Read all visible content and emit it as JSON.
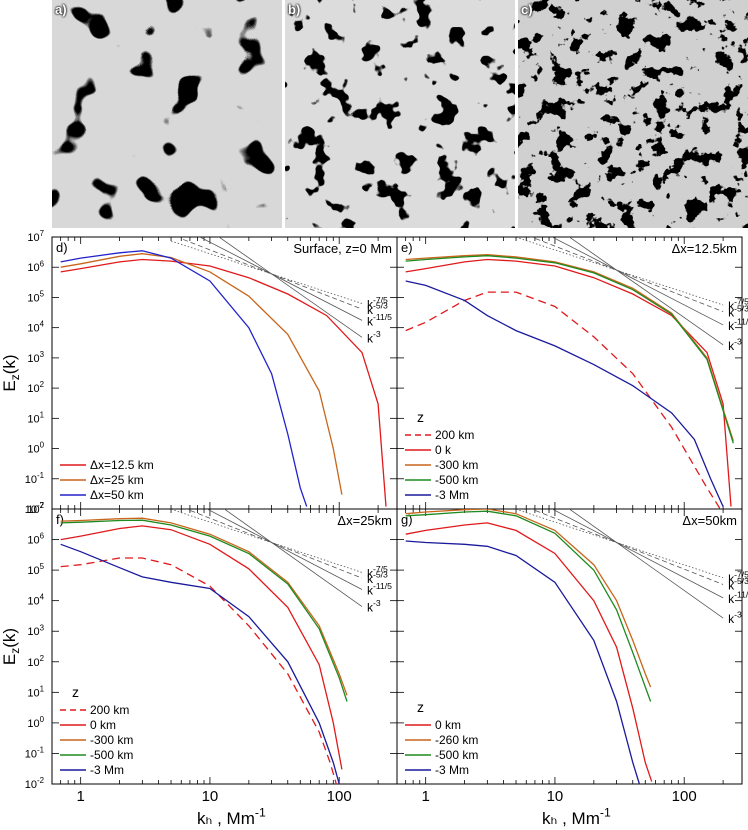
{
  "image_panels": [
    {
      "label": "a)"
    },
    {
      "label": "b)"
    },
    {
      "label": "c)"
    }
  ],
  "colors": {
    "red": "#e0191b",
    "orange": "#c8651b",
    "blue": "#2222cc",
    "darkblue": "#1a1a9c",
    "green": "#1f8a1f",
    "olive": "#9a7d1a"
  },
  "chart_data": [
    {
      "type": "line",
      "panel_label": "d)",
      "annotation": "Surface, z=0 Mm",
      "xlabel": "k_h , Mm^-1",
      "ylabel": "E_z(k)",
      "xscale": "log",
      "yscale": "log",
      "xlim": [
        0.6,
        280
      ],
      "ylim": [
        0.01,
        10000000
      ],
      "x_ticks": [
        "1",
        "10",
        "100"
      ],
      "y_ticks": [
        "10^-2",
        "10^-1",
        "10^0",
        "10^1",
        "10^2",
        "10^3",
        "10^4",
        "10^5",
        "10^6",
        "10^7"
      ],
      "legend_title": "",
      "legend_position": "bottom-left",
      "series": [
        {
          "name": "Δx=12.5 km",
          "color": "#e0191b",
          "dash": "solid",
          "x": [
            0.7,
            1,
            2,
            3,
            5,
            10,
            20,
            40,
            80,
            150,
            200,
            230
          ],
          "y": [
            700000,
            900000,
            1500000,
            1800000,
            1600000,
            1100000,
            450000,
            130000,
            25000,
            1500,
            30,
            0.012
          ]
        },
        {
          "name": "Δx=25 km",
          "color": "#c8651b",
          "dash": "solid",
          "x": [
            0.7,
            1,
            2,
            3,
            5,
            10,
            20,
            40,
            70,
            90,
            105
          ],
          "y": [
            1000000,
            1300000,
            2300000,
            2800000,
            2100000,
            700000,
            110000,
            6000,
            80,
            1,
            0.03
          ]
        },
        {
          "name": "Δx=50 km",
          "color": "#2222cc",
          "dash": "solid",
          "x": [
            0.7,
            1,
            2,
            3,
            5,
            10,
            20,
            30,
            40,
            50,
            56
          ],
          "y": [
            1500000,
            2000000,
            3000000,
            3500000,
            2000000,
            350000,
            10000,
            300,
            3,
            0.05,
            0.012
          ]
        }
      ],
      "power_laws": [
        {
          "label": "k^-7/5",
          "exp": "-7/5",
          "style": "dotted"
        },
        {
          "label": "k^-5/3",
          "exp": "-5/3",
          "style": "dashed"
        },
        {
          "label": "k^-11/5",
          "exp": "-11/5",
          "style": "solid"
        },
        {
          "label": "k^-3",
          "exp": "-3",
          "style": "solid"
        }
      ]
    },
    {
      "type": "line",
      "panel_label": "e)",
      "annotation": "Δx=12.5km",
      "xlabel": "k_h , Mm^-1",
      "ylabel": "E_z(k)",
      "xscale": "log",
      "yscale": "log",
      "xlim": [
        0.6,
        280
      ],
      "ylim": [
        0.01,
        10000000
      ],
      "x_ticks": [
        "1",
        "10",
        "100"
      ],
      "y_ticks": [
        "10^-2",
        "10^-1",
        "10^0",
        "10^1",
        "10^2",
        "10^3",
        "10^4",
        "10^5",
        "10^6",
        "10^7"
      ],
      "legend_title": "z",
      "legend_position": "bottom-left",
      "series": [
        {
          "name": "200 km",
          "color": "#e0191b",
          "dash": "dashed",
          "x": [
            0.7,
            1,
            2,
            3,
            5,
            10,
            20,
            40,
            80,
            150,
            190
          ],
          "y": [
            8000,
            15000,
            80000,
            150000,
            150000,
            50000,
            5000,
            300,
            5,
            0.05,
            0.01
          ]
        },
        {
          "name": "0 k",
          "color": "#e0191b",
          "dash": "solid",
          "x": [
            0.7,
            1,
            2,
            3,
            5,
            10,
            20,
            40,
            80,
            150,
            200,
            230
          ],
          "y": [
            700000,
            900000,
            1500000,
            1800000,
            1600000,
            1100000,
            450000,
            130000,
            25000,
            1500,
            30,
            0.012
          ]
        },
        {
          "name": "-300 km",
          "color": "#c8651b",
          "dash": "solid",
          "x": [
            0.7,
            1,
            2,
            3,
            5,
            10,
            20,
            40,
            80,
            150,
            200,
            240
          ],
          "y": [
            1800000,
            2000000,
            2400000,
            2600000,
            2200000,
            1500000,
            700000,
            200000,
            30000,
            1000,
            20,
            1.8
          ]
        },
        {
          "name": "-500 km",
          "color": "#1f8a1f",
          "dash": "solid",
          "x": [
            0.7,
            1,
            2,
            3,
            5,
            10,
            20,
            40,
            80,
            150,
            200,
            240
          ],
          "y": [
            1600000,
            1800000,
            2200000,
            2400000,
            2000000,
            1400000,
            650000,
            180000,
            28000,
            900,
            18,
            1.5
          ]
        },
        {
          "name": "-3 Mm",
          "color": "#1a1a9c",
          "dash": "solid",
          "x": [
            0.7,
            1,
            2,
            3,
            5,
            10,
            20,
            40,
            80,
            120,
            160,
            200
          ],
          "y": [
            350000,
            250000,
            80000,
            25000,
            8000,
            2500,
            600,
            120,
            15,
            2,
            0.1,
            0.012
          ]
        }
      ],
      "power_laws": [
        {
          "label": "k^-7/5",
          "exp": "-7/5",
          "style": "dotted"
        },
        {
          "label": "k^-5/3",
          "exp": "-5/3",
          "style": "dashed"
        },
        {
          "label": "k^-11/5",
          "exp": "-11/5",
          "style": "solid"
        },
        {
          "label": "k^-3",
          "exp": "-3",
          "style": "solid"
        }
      ]
    },
    {
      "type": "line",
      "panel_label": "f)",
      "annotation": "Δx=25km",
      "xlabel": "k_h , Mm^-1",
      "ylabel": "E_z(k)",
      "xscale": "log",
      "yscale": "log",
      "xlim": [
        0.6,
        280
      ],
      "ylim": [
        0.01,
        10000000
      ],
      "x_ticks": [
        "1",
        "10",
        "100"
      ],
      "y_ticks": [
        "10^-2",
        "10^-1",
        "10^0",
        "10^1",
        "10^2",
        "10^3",
        "10^4",
        "10^5",
        "10^6",
        "10^7"
      ],
      "legend_title": "z",
      "legend_position": "bottom-left",
      "series": [
        {
          "name": "200 km",
          "color": "#e0191b",
          "dash": "dashed",
          "x": [
            0.7,
            1,
            2,
            3,
            5,
            10,
            20,
            40,
            70,
            85,
            95
          ],
          "y": [
            130000,
            150000,
            250000,
            250000,
            150000,
            30000,
            1500,
            40,
            0.5,
            0.05,
            0.01
          ]
        },
        {
          "name": "0 km",
          "color": "#e0191b",
          "dash": "solid",
          "x": [
            0.7,
            1,
            2,
            3,
            5,
            10,
            20,
            40,
            70,
            90,
            105
          ],
          "y": [
            1000000,
            1300000,
            2300000,
            2800000,
            2100000,
            700000,
            110000,
            6000,
            80,
            1,
            0.03
          ]
        },
        {
          "name": "-300 km",
          "color": "#c8651b",
          "dash": "solid",
          "x": [
            0.7,
            1,
            2,
            3,
            5,
            10,
            20,
            40,
            70,
            100,
            115
          ],
          "y": [
            4000000,
            4200000,
            4800000,
            5000000,
            3500000,
            1500000,
            400000,
            40000,
            1500,
            40,
            8
          ]
        },
        {
          "name": "-500 km",
          "color": "#1f8a1f",
          "dash": "solid",
          "x": [
            0.7,
            1,
            2,
            3,
            5,
            10,
            20,
            40,
            70,
            100,
            115
          ],
          "y": [
            3500000,
            3700000,
            4200000,
            4300000,
            3000000,
            1300000,
            350000,
            35000,
            1200,
            30,
            5
          ]
        },
        {
          "name": "-3 Mm",
          "color": "#1a1a9c",
          "dash": "solid",
          "x": [
            0.7,
            1,
            2,
            3,
            5,
            10,
            20,
            40,
            70,
            90,
            100
          ],
          "y": [
            700000,
            400000,
            120000,
            60000,
            40000,
            25000,
            3000,
            100,
            1,
            0.05,
            0.01
          ]
        }
      ],
      "power_laws": [
        {
          "label": "k^-7/5",
          "exp": "-7/5",
          "style": "dotted"
        },
        {
          "label": "k^-5/3",
          "exp": "-5/3",
          "style": "dashed"
        },
        {
          "label": "k^-11/5",
          "exp": "-11/5",
          "style": "solid"
        },
        {
          "label": "k^-3",
          "exp": "-3",
          "style": "solid"
        }
      ]
    },
    {
      "type": "line",
      "panel_label": "g)",
      "annotation": "Δx=50km",
      "xlabel": "k_h , Mm^-1",
      "ylabel": "E_z(k)",
      "xscale": "log",
      "yscale": "log",
      "xlim": [
        0.6,
        280
      ],
      "ylim": [
        0.01,
        10000000
      ],
      "x_ticks": [
        "1",
        "10",
        "100"
      ],
      "y_ticks": [
        "10^-2",
        "10^-1",
        "10^0",
        "10^1",
        "10^2",
        "10^3",
        "10^4",
        "10^5",
        "10^6",
        "10^7"
      ],
      "legend_title": "z",
      "legend_position": "bottom-left",
      "series": [
        {
          "name": "0 km",
          "color": "#e0191b",
          "dash": "solid",
          "x": [
            0.7,
            1,
            2,
            3,
            5,
            10,
            20,
            30,
            40,
            50,
            56
          ],
          "y": [
            1500000,
            2000000,
            3000000,
            3500000,
            2000000,
            350000,
            10000,
            300,
            3,
            0.05,
            0.012
          ]
        },
        {
          "name": "-260 km",
          "color": "#c8651b",
          "dash": "solid",
          "x": [
            0.7,
            1,
            2,
            3,
            5,
            10,
            20,
            30,
            40,
            50,
            55
          ],
          "y": [
            7000000,
            8000000,
            9500000,
            10000000,
            7000000,
            2000000,
            150000,
            10000,
            500,
            40,
            15
          ]
        },
        {
          "name": "-500 km",
          "color": "#1f8a1f",
          "dash": "solid",
          "x": [
            0.7,
            1,
            2,
            3,
            5,
            10,
            20,
            30,
            40,
            50,
            55
          ],
          "y": [
            6000000,
            6500000,
            8000000,
            8500000,
            6000000,
            1600000,
            100000,
            5000,
            200,
            15,
            5
          ]
        },
        {
          "name": "-3 Mm",
          "color": "#1a1a9c",
          "dash": "solid",
          "x": [
            0.7,
            1,
            2,
            3,
            5,
            10,
            20,
            30,
            40,
            45
          ],
          "y": [
            900000,
            800000,
            700000,
            600000,
            300000,
            40000,
            500,
            5,
            0.05,
            0.01
          ]
        }
      ],
      "power_laws": [
        {
          "label": "k^-7/5",
          "exp": "-7/5",
          "style": "dotted"
        },
        {
          "label": "k^-5/3",
          "exp": "-5/3",
          "style": "dashed"
        },
        {
          "label": "k^-11/5",
          "exp": "-11/5",
          "style": "solid"
        },
        {
          "label": "k^-3",
          "exp": "-3",
          "style": "solid"
        }
      ]
    }
  ]
}
